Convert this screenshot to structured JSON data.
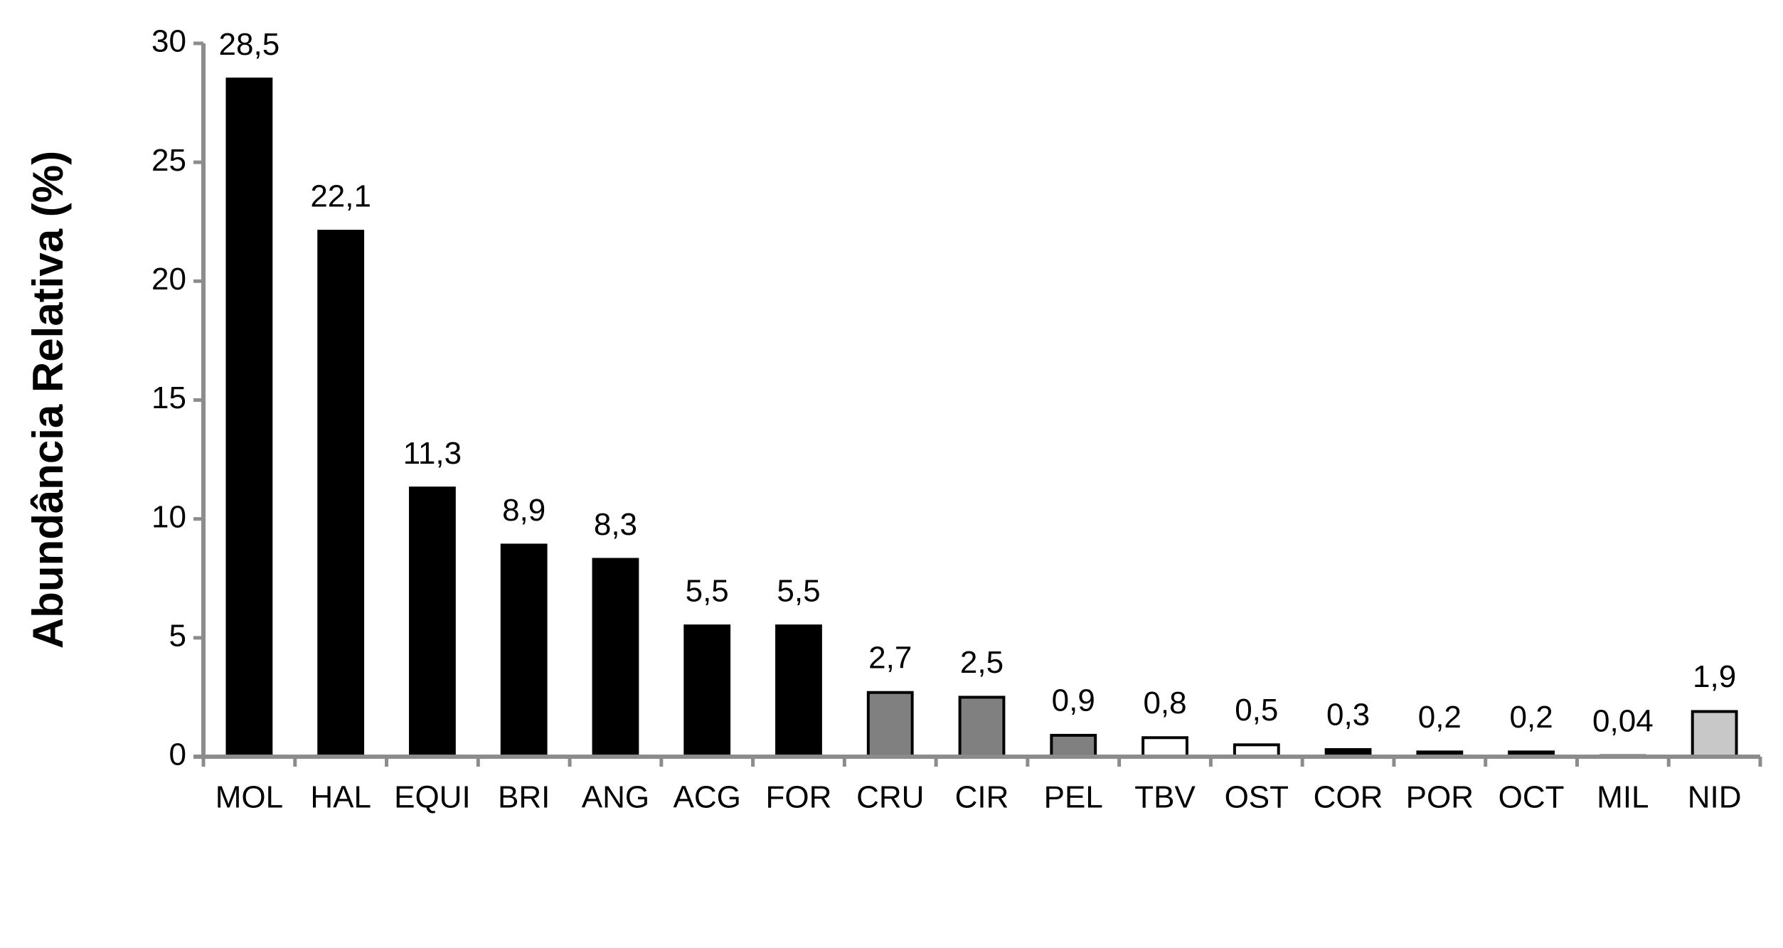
{
  "chart_data": {
    "type": "bar",
    "y_label": "Abundância Relativa (%)",
    "categories": [
      "MOL",
      "HAL",
      "EQUI",
      "BRI",
      "ANG",
      "ACG",
      "FOR",
      "CRU",
      "CIR",
      "PEL",
      "TBV",
      "OST",
      "COR",
      "POR",
      "OCT",
      "MIL",
      "NID"
    ],
    "values": [
      28.5,
      22.1,
      11.3,
      8.9,
      8.3,
      5.5,
      5.5,
      2.7,
      2.5,
      0.9,
      0.8,
      0.5,
      0.3,
      0.2,
      0.2,
      0.04,
      1.9
    ],
    "value_labels": [
      "28,5",
      "22,1",
      "11,3",
      "8,9",
      "8,3",
      "5,5",
      "5,5",
      "2,7",
      "2,5",
      "0,9",
      "0,8",
      "0,5",
      "0,3",
      "0,2",
      "0,2",
      "0,04",
      "1,9"
    ],
    "colors": [
      "#000000",
      "#000000",
      "#000000",
      "#000000",
      "#000000",
      "#000000",
      "#000000",
      "#808080",
      "#808080",
      "#808080",
      "#ffffff",
      "#ffffff",
      "#000000",
      "#000000",
      "#000000",
      "#000000",
      "#c8c8c8"
    ],
    "ylim": [
      0,
      30
    ],
    "yticks": [
      0,
      5,
      10,
      15,
      20,
      25,
      30
    ],
    "grid": false
  }
}
